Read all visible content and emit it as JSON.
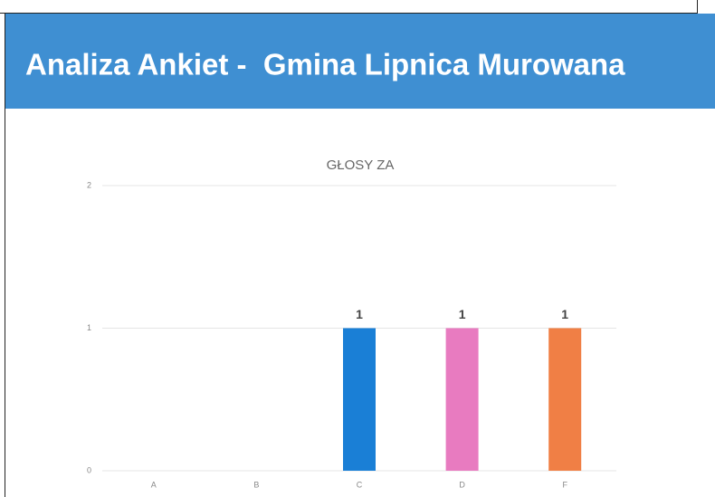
{
  "header": {
    "title": "Analiza Ankiet -  Gmina Lipnica Murowana"
  },
  "chart_data": {
    "type": "bar",
    "title": "GŁOSY ZA",
    "categories": [
      "A",
      "B",
      "C",
      "D",
      "F"
    ],
    "values": [
      0,
      0,
      1,
      1,
      1
    ],
    "colors": [
      null,
      null,
      "#1a7fd6",
      "#e87bc0",
      "#f07f45"
    ],
    "ylim": [
      0,
      2
    ],
    "yticks": [
      0,
      1,
      2
    ],
    "grid": true
  }
}
